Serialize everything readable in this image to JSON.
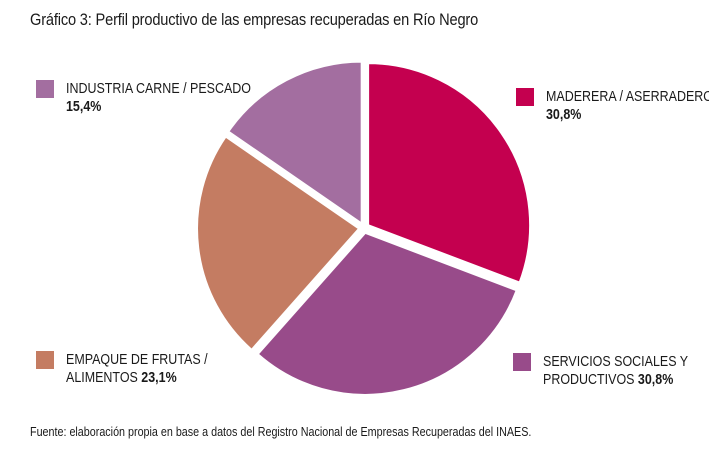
{
  "title": "Gráfico 3: Perfil productivo de las empresas recuperadas en Río Negro",
  "source": "Fuente: elaboración propia en base a datos del Registro Nacional de Empresas Recuperadas del INAES.",
  "chart_data": {
    "type": "pie",
    "title": "Gráfico 3: Perfil productivo de las empresas recuperadas en Río Negro",
    "unit": "%",
    "slices": [
      {
        "label": "MADERERA / ASERRADERO",
        "line1": "MADERERA / ASERRADERO",
        "line2": "",
        "value": 30.8,
        "display": "30,8%",
        "color": "#c4004f"
      },
      {
        "label": "SERVICIOS SOCIALES Y PRODUCTIVOS",
        "line1": "SERVICIOS SOCIALES Y",
        "line2": "PRODUCTIVOS",
        "value": 30.8,
        "display": "30,8%",
        "color": "#984b8a"
      },
      {
        "label": "EMPAQUE DE FRUTAS / ALIMENTOS",
        "line1": "EMPAQUE DE FRUTAS /",
        "line2": "ALIMENTOS",
        "value": 23.1,
        "display": "23,1%",
        "color": "#c47c62"
      },
      {
        "label": "INDUSTRIA CARNE / PESCADO",
        "line1": "INDUSTRIA CARNE / PESCADO",
        "line2": "",
        "value": 15.4,
        "display": "15,4%",
        "color": "#a36ea0"
      }
    ],
    "start_angle_deg": 0,
    "direction": "clockwise",
    "exploded": true,
    "legend": "corners"
  }
}
